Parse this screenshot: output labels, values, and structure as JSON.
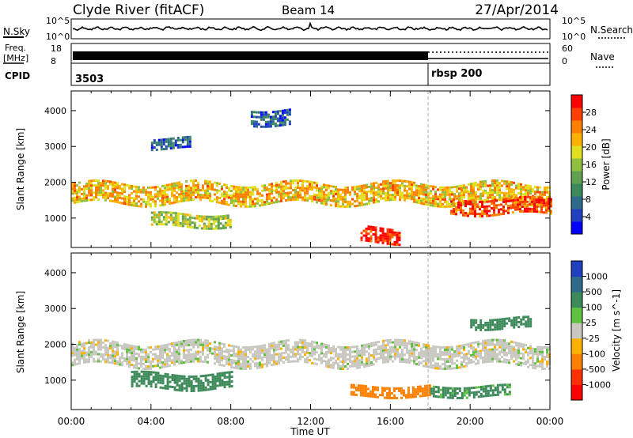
{
  "header": {
    "station": "Clyde River (fitACF)",
    "beam": "Beam 14",
    "date": "27/Apr/2014"
  },
  "noise_panel": {
    "left_label": "N.Sky",
    "right_label": "N.Search",
    "left_ticks": [
      "10^5",
      "10^0"
    ],
    "right_ticks": [
      "10^5",
      "10^0"
    ]
  },
  "freq_panel": {
    "left_label_1": "Freq.",
    "left_label_2": "[MHz]",
    "right_label": "Nave",
    "left_ticks": [
      "18",
      "8"
    ],
    "right_ticks": [
      "60",
      "0"
    ]
  },
  "cpid_panel": {
    "label": "CPID",
    "segments": [
      {
        "text": "3503",
        "start_hour": 0
      },
      {
        "text": "rbsp 200",
        "start_hour": 18
      }
    ]
  },
  "axes": {
    "ylabel": "Slant Range [km]",
    "xlabel": "Time UT",
    "x_ticks": [
      "00:00",
      "04:00",
      "08:00",
      "12:00",
      "16:00",
      "20:00",
      "00:00"
    ],
    "y_ticks": [
      "1000",
      "2000",
      "3000",
      "4000"
    ]
  },
  "power_colorbar": {
    "label": "Power [dB]",
    "ticks": [
      "4",
      "8",
      "12",
      "16",
      "20",
      "24",
      "28"
    ],
    "colors": [
      "#0000ff",
      "#2040c0",
      "#2e6a8a",
      "#3c8a5a",
      "#60a050",
      "#90c040",
      "#e0e020",
      "#ffb000",
      "#ff8000",
      "#ff4000",
      "#ff0000"
    ]
  },
  "velocity_colorbar": {
    "label": "Velocity [m s^-1]",
    "ticks": [
      "1000",
      "500",
      "100",
      "25",
      "-25",
      "-100",
      "-500",
      "-1000"
    ],
    "colors": [
      "#2040c0",
      "#2e6a8a",
      "#3c8a5a",
      "#60c040",
      "#c8c8c0",
      "#ffb000",
      "#ff8000",
      "#ff3000",
      "#ff0000"
    ]
  },
  "chart_data": [
    {
      "type": "heatmap",
      "name": "power",
      "ylabel": "Slant Range [km]",
      "xlabel": "Time UT",
      "x_range_hours": [
        0,
        24
      ],
      "y_range_km": [
        180,
        4550
      ],
      "colorbar_label": "Power [dB]",
      "colorbar_range_db": [
        0,
        30
      ],
      "bands": [
        {
          "t_start": 0,
          "t_end": 24,
          "center_km": 1700,
          "halfwidth_km": 280,
          "level_db": 20
        },
        {
          "t_start": 4,
          "t_end": 8,
          "center_km": 950,
          "halfwidth_km": 180,
          "level_db": 16
        },
        {
          "t_start": 14.5,
          "t_end": 16.5,
          "center_km": 550,
          "halfwidth_km": 200,
          "level_db": 28
        },
        {
          "t_start": 19,
          "t_end": 24,
          "center_km": 1350,
          "halfwidth_km": 200,
          "level_db": 26
        },
        {
          "t_start": 9,
          "t_end": 11,
          "center_km": 3850,
          "halfwidth_km": 200,
          "level_db": 6
        },
        {
          "t_start": 4,
          "t_end": 6,
          "center_km": 3100,
          "halfwidth_km": 150,
          "level_db": 6
        }
      ]
    },
    {
      "type": "heatmap",
      "name": "velocity",
      "ylabel": "Slant Range [km]",
      "xlabel": "Time UT",
      "x_range_hours": [
        0,
        24
      ],
      "y_range_km": [
        180,
        4550
      ],
      "colorbar_label": "Velocity [m s^-1]",
      "bands": [
        {
          "t_start": 0,
          "t_end": 24,
          "center_km": 1750,
          "halfwidth_km": 300,
          "velocity": 0
        },
        {
          "t_start": 3,
          "t_end": 8,
          "center_km": 1000,
          "halfwidth_km": 200,
          "velocity": 150
        },
        {
          "t_start": 14,
          "t_end": 18,
          "center_km": 700,
          "halfwidth_km": 150,
          "velocity": -150
        },
        {
          "t_start": 18,
          "t_end": 22,
          "center_km": 700,
          "halfwidth_km": 150,
          "velocity": 120
        },
        {
          "t_start": 20,
          "t_end": 23,
          "center_km": 2600,
          "halfwidth_km": 150,
          "velocity": 300
        }
      ]
    }
  ]
}
